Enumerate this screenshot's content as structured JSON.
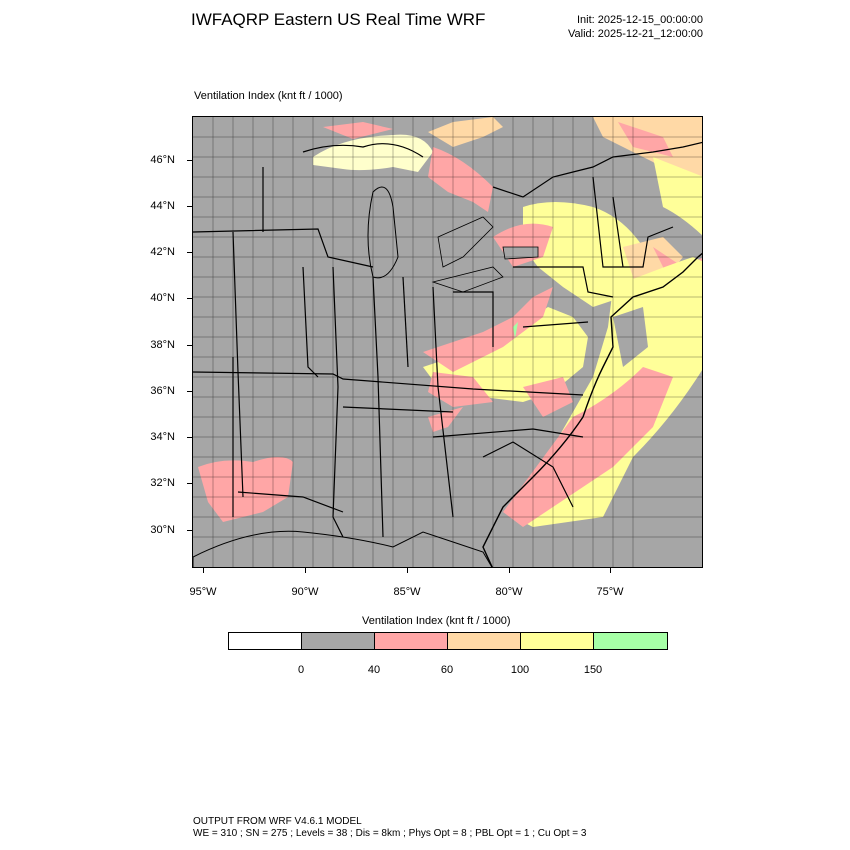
{
  "header": {
    "title": "IWFAQRP Eastern US Real Time WRF",
    "init": "Init: 2025-12-15_00:00:00",
    "valid": "Valid: 2025-12-21_12:00:00"
  },
  "plot": {
    "subtitle": "Ventilation Index   (knt ft / 1000)",
    "lat_labels": [
      "46°N",
      "44°N",
      "42°N",
      "40°N",
      "38°N",
      "36°N",
      "34°N",
      "32°N",
      "30°N"
    ],
    "lon_labels": [
      "95°W",
      "90°W",
      "85°W",
      "80°W",
      "75°W"
    ]
  },
  "legend": {
    "title": "Ventilation Index  (knt ft / 1000)",
    "colors": [
      "#ffffff",
      "#a6a6a6",
      "#ffa6a6",
      "#ffd9a6",
      "#ffff99",
      "#a6ffa6"
    ],
    "labels": [
      "0",
      "40",
      "60",
      "100",
      "150"
    ]
  },
  "footer": {
    "line1": "OUTPUT FROM WRF V4.6.1 MODEL",
    "line2": "WE = 310 ; SN = 275 ; Levels = 38 ; Dis = 8km ; Phys Opt = 8 ; PBL Opt = 1 ; Cu Opt = 3"
  },
  "colors": {
    "grey": "#a6a6a6",
    "pink": "#ffa6a6",
    "orange": "#ffd9a6",
    "yellow": "#ffff99",
    "green": "#a6ffa6"
  }
}
